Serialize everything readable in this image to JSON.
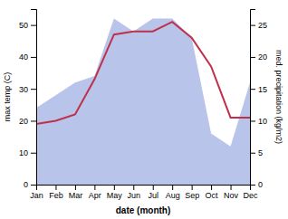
{
  "chart_data": {
    "type": "line",
    "categories": [
      "Jan",
      "Feb",
      "Mar",
      "Apr",
      "May",
      "Jun",
      "Jul",
      "Aug",
      "Sep",
      "Oct",
      "Nov",
      "Dec"
    ],
    "xlabel": "date (month)",
    "ylabel": "max temp (C)",
    "y2label": "med. precipitation (kg/m2)",
    "series": [
      {
        "type": "area",
        "color": "#b8c4ea",
        "axis": "y2",
        "values": [
          12,
          14,
          16,
          17,
          26,
          24,
          26,
          26,
          23,
          8,
          6,
          16
        ]
      },
      {
        "type": "line",
        "color": "#c0304a",
        "values": [
          19,
          20,
          22,
          33,
          47,
          48,
          48,
          51,
          46,
          37,
          21,
          21
        ]
      }
    ],
    "ylim": [
      0,
      55
    ],
    "yticks": [
      0,
      10,
      20,
      30,
      40,
      50
    ],
    "y2lim": [
      0,
      27.5
    ],
    "y2ticks": [
      0,
      5,
      10,
      15,
      20,
      25
    ],
    "grid": false
  }
}
